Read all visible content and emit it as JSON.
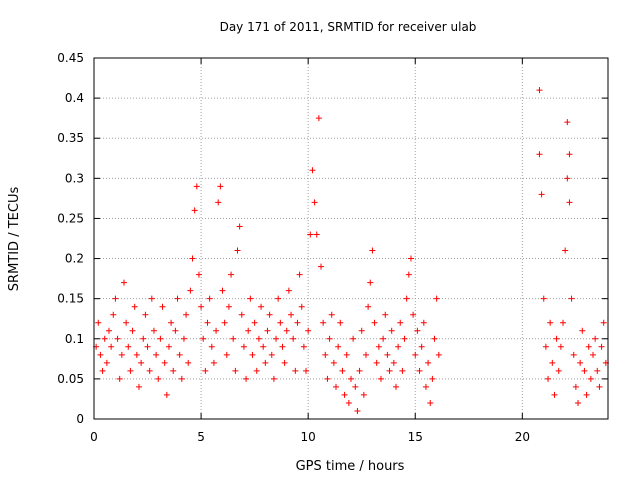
{
  "chart_data": {
    "type": "scatter",
    "title": "Day 171 of 2011, SRMTID for receiver ulab",
    "xlabel": "GPS time / hours",
    "ylabel": "SRMTID / TECUs",
    "xlim": [
      0,
      24
    ],
    "ylim": [
      0,
      0.45
    ],
    "x_ticks": [
      0,
      5,
      10,
      15,
      20
    ],
    "x_tick_labels": [
      "0",
      "5",
      "10",
      "15",
      "20"
    ],
    "y_ticks": [
      0,
      0.05,
      0.1,
      0.15,
      0.2,
      0.25,
      0.3,
      0.35,
      0.4,
      0.45
    ],
    "y_tick_labels": [
      "0",
      "0.05",
      "0.1",
      "0.15",
      "0.2",
      "0.25",
      "0.3",
      "0.35",
      "0.4",
      "0.45"
    ],
    "grid": true,
    "marker": "+",
    "color": "#ff0000",
    "series": [
      {
        "name": "SRMTID",
        "points": [
          [
            0.1,
            0.09
          ],
          [
            0.2,
            0.12
          ],
          [
            0.3,
            0.08
          ],
          [
            0.4,
            0.06
          ],
          [
            0.5,
            0.1
          ],
          [
            0.6,
            0.07
          ],
          [
            0.7,
            0.11
          ],
          [
            0.8,
            0.09
          ],
          [
            0.9,
            0.13
          ],
          [
            1.0,
            0.15
          ],
          [
            1.1,
            0.1
          ],
          [
            1.2,
            0.05
          ],
          [
            1.3,
            0.08
          ],
          [
            1.4,
            0.17
          ],
          [
            1.5,
            0.12
          ],
          [
            1.6,
            0.09
          ],
          [
            1.7,
            0.06
          ],
          [
            1.8,
            0.11
          ],
          [
            1.9,
            0.14
          ],
          [
            2.0,
            0.08
          ],
          [
            2.1,
            0.04
          ],
          [
            2.2,
            0.07
          ],
          [
            2.3,
            0.1
          ],
          [
            2.4,
            0.13
          ],
          [
            2.5,
            0.09
          ],
          [
            2.6,
            0.06
          ],
          [
            2.7,
            0.15
          ],
          [
            2.8,
            0.11
          ],
          [
            2.9,
            0.08
          ],
          [
            3.0,
            0.05
          ],
          [
            3.1,
            0.1
          ],
          [
            3.2,
            0.14
          ],
          [
            3.3,
            0.07
          ],
          [
            3.4,
            0.03
          ],
          [
            3.5,
            0.09
          ],
          [
            3.6,
            0.12
          ],
          [
            3.7,
            0.06
          ],
          [
            3.8,
            0.11
          ],
          [
            3.9,
            0.15
          ],
          [
            4.0,
            0.08
          ],
          [
            4.1,
            0.05
          ],
          [
            4.2,
            0.1
          ],
          [
            4.3,
            0.13
          ],
          [
            4.4,
            0.07
          ],
          [
            4.5,
            0.16
          ],
          [
            4.6,
            0.2
          ],
          [
            4.7,
            0.26
          ],
          [
            4.8,
            0.29
          ],
          [
            4.9,
            0.18
          ],
          [
            5.0,
            0.14
          ],
          [
            5.1,
            0.1
          ],
          [
            5.2,
            0.06
          ],
          [
            5.3,
            0.12
          ],
          [
            5.4,
            0.15
          ],
          [
            5.5,
            0.09
          ],
          [
            5.6,
            0.07
          ],
          [
            5.7,
            0.11
          ],
          [
            5.8,
            0.27
          ],
          [
            5.9,
            0.29
          ],
          [
            6.0,
            0.16
          ],
          [
            6.1,
            0.12
          ],
          [
            6.2,
            0.08
          ],
          [
            6.3,
            0.14
          ],
          [
            6.4,
            0.18
          ],
          [
            6.5,
            0.1
          ],
          [
            6.6,
            0.06
          ],
          [
            6.7,
            0.21
          ],
          [
            6.8,
            0.24
          ],
          [
            6.9,
            0.13
          ],
          [
            7.0,
            0.09
          ],
          [
            7.1,
            0.05
          ],
          [
            7.2,
            0.11
          ],
          [
            7.3,
            0.15
          ],
          [
            7.4,
            0.08
          ],
          [
            7.5,
            0.12
          ],
          [
            7.6,
            0.06
          ],
          [
            7.7,
            0.1
          ],
          [
            7.8,
            0.14
          ],
          [
            7.9,
            0.09
          ],
          [
            8.0,
            0.07
          ],
          [
            8.1,
            0.11
          ],
          [
            8.2,
            0.13
          ],
          [
            8.3,
            0.08
          ],
          [
            8.4,
            0.05
          ],
          [
            8.5,
            0.1
          ],
          [
            8.6,
            0.15
          ],
          [
            8.7,
            0.12
          ],
          [
            8.8,
            0.09
          ],
          [
            8.9,
            0.07
          ],
          [
            9.0,
            0.11
          ],
          [
            9.1,
            0.16
          ],
          [
            9.2,
            0.13
          ],
          [
            9.3,
            0.1
          ],
          [
            9.4,
            0.06
          ],
          [
            9.5,
            0.12
          ],
          [
            9.6,
            0.18
          ],
          [
            9.7,
            0.14
          ],
          [
            9.8,
            0.09
          ],
          [
            9.9,
            0.06
          ],
          [
            10.0,
            0.11
          ],
          [
            10.1,
            0.23
          ],
          [
            10.2,
            0.31
          ],
          [
            10.3,
            0.27
          ],
          [
            10.4,
            0.23
          ],
          [
            10.5,
            0.375
          ],
          [
            10.6,
            0.19
          ],
          [
            10.7,
            0.12
          ],
          [
            10.8,
            0.08
          ],
          [
            10.9,
            0.05
          ],
          [
            11.0,
            0.1
          ],
          [
            11.1,
            0.13
          ],
          [
            11.2,
            0.07
          ],
          [
            11.3,
            0.04
          ],
          [
            11.4,
            0.09
          ],
          [
            11.5,
            0.12
          ],
          [
            11.6,
            0.06
          ],
          [
            11.7,
            0.03
          ],
          [
            11.8,
            0.08
          ],
          [
            11.9,
            0.02
          ],
          [
            12.0,
            0.05
          ],
          [
            12.1,
            0.1
          ],
          [
            12.2,
            0.04
          ],
          [
            12.3,
            0.01
          ],
          [
            12.4,
            0.06
          ],
          [
            12.5,
            0.11
          ],
          [
            12.6,
            0.03
          ],
          [
            12.7,
            0.08
          ],
          [
            12.8,
            0.14
          ],
          [
            12.9,
            0.17
          ],
          [
            13.0,
            0.21
          ],
          [
            13.1,
            0.12
          ],
          [
            13.2,
            0.07
          ],
          [
            13.3,
            0.09
          ],
          [
            13.4,
            0.05
          ],
          [
            13.5,
            0.1
          ],
          [
            13.6,
            0.13
          ],
          [
            13.7,
            0.08
          ],
          [
            13.8,
            0.06
          ],
          [
            13.9,
            0.11
          ],
          [
            14.0,
            0.07
          ],
          [
            14.1,
            0.04
          ],
          [
            14.2,
            0.09
          ],
          [
            14.3,
            0.12
          ],
          [
            14.4,
            0.06
          ],
          [
            14.5,
            0.1
          ],
          [
            14.6,
            0.15
          ],
          [
            14.7,
            0.18
          ],
          [
            14.8,
            0.2
          ],
          [
            14.9,
            0.13
          ],
          [
            15.0,
            0.08
          ],
          [
            15.1,
            0.11
          ],
          [
            15.2,
            0.06
          ],
          [
            15.3,
            0.09
          ],
          [
            15.4,
            0.12
          ],
          [
            15.5,
            0.04
          ],
          [
            15.6,
            0.07
          ],
          [
            15.7,
            0.02
          ],
          [
            15.8,
            0.05
          ],
          [
            15.9,
            0.1
          ],
          [
            16.0,
            0.15
          ],
          [
            16.1,
            0.08
          ],
          [
            20.8,
            0.41
          ],
          [
            20.8,
            0.33
          ],
          [
            20.9,
            0.28
          ],
          [
            21.0,
            0.15
          ],
          [
            21.1,
            0.09
          ],
          [
            21.2,
            0.05
          ],
          [
            21.3,
            0.12
          ],
          [
            21.4,
            0.07
          ],
          [
            21.5,
            0.03
          ],
          [
            21.6,
            0.1
          ],
          [
            21.7,
            0.06
          ],
          [
            21.8,
            0.09
          ],
          [
            21.9,
            0.12
          ],
          [
            22.0,
            0.21
          ],
          [
            22.1,
            0.3
          ],
          [
            22.1,
            0.37
          ],
          [
            22.2,
            0.33
          ],
          [
            22.2,
            0.27
          ],
          [
            22.3,
            0.15
          ],
          [
            22.4,
            0.08
          ],
          [
            22.5,
            0.04
          ],
          [
            22.6,
            0.02
          ],
          [
            22.7,
            0.07
          ],
          [
            22.8,
            0.11
          ],
          [
            22.9,
            0.06
          ],
          [
            23.0,
            0.03
          ],
          [
            23.1,
            0.09
          ],
          [
            23.2,
            0.05
          ],
          [
            23.3,
            0.08
          ],
          [
            23.4,
            0.1
          ],
          [
            23.5,
            0.06
          ],
          [
            23.6,
            0.04
          ],
          [
            23.7,
            0.09
          ],
          [
            23.8,
            0.12
          ],
          [
            23.9,
            0.07
          ]
        ]
      }
    ]
  }
}
